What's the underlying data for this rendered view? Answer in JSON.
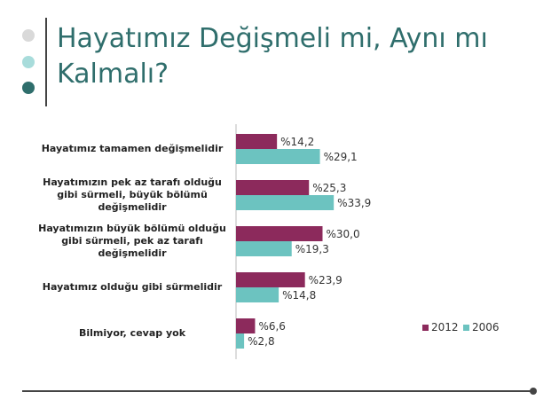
{
  "chart_data": {
    "type": "hbar",
    "title": "Hayatımız Değişmeli mi, Aynı mı Kalmalı?",
    "categories": [
      "Hayatımız tamamen değişmelidir",
      "Hayatımızın pek az tarafı olduğu gibi sürmeli, büyük bölümü değişmelidir",
      "Hayatımızın büyük bölümü olduğu gibi sürmeli, pek az tarafı değişmelidir",
      "Hayatımız olduğu gibi sürmelidir",
      "Bilmiyor, cevap yok"
    ],
    "series": [
      {
        "name": "2012",
        "color": "#8c2a5c",
        "values": [
          14.2,
          25.3,
          30.0,
          23.9,
          6.6
        ],
        "value_labels": [
          "%14,2",
          "%25,3",
          "%30,0",
          "%23,9",
          "%6,6"
        ]
      },
      {
        "name": "2006",
        "color": "#6cc3c0",
        "values": [
          29.1,
          33.9,
          19.3,
          14.8,
          2.8
        ],
        "value_labels": [
          "%29,1",
          "%33,9",
          "%19,3",
          "%14,8",
          "%2,8"
        ]
      }
    ],
    "xlim": [
      0,
      40
    ]
  }
}
